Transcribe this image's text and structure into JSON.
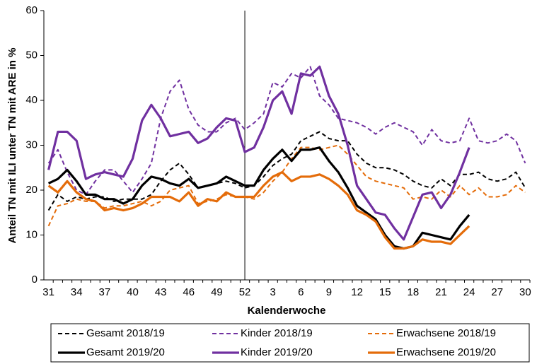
{
  "chart_data": {
    "type": "line",
    "x_label": "Kalenderwoche",
    "y_label": "Anteil TN mit ILI unter TN mit ARE in %",
    "categories": [
      "31",
      null,
      null,
      "34",
      null,
      null,
      "37",
      null,
      null,
      "40",
      null,
      null,
      "43",
      null,
      null,
      "46",
      null,
      null,
      "49",
      null,
      null,
      "52",
      null,
      null,
      "3",
      null,
      null,
      "6",
      null,
      null,
      "9",
      null,
      null,
      "12",
      null,
      null,
      "15",
      null,
      null,
      "18",
      null,
      null,
      "21",
      null,
      null,
      "24",
      null,
      null,
      "27",
      null,
      null,
      "30"
    ],
    "ylim": [
      0,
      60
    ],
    "yticks": [
      0,
      10,
      20,
      30,
      40,
      50,
      60
    ],
    "vertical_line": true,
    "series": [
      {
        "name": "Gesamt 2018/19",
        "color": "#000000",
        "line_style": "dashed",
        "values": [
          15.5,
          19,
          17.5,
          18.5,
          18,
          18.5,
          18.5,
          17.5,
          18,
          18,
          18,
          19,
          22,
          24.5,
          26,
          23.5,
          20.5,
          21,
          21.5,
          22,
          21.5,
          20.5,
          21,
          23,
          25.5,
          27,
          28,
          31,
          32,
          33,
          31.5,
          31,
          31,
          28,
          26,
          25,
          25,
          24.5,
          23.5,
          22,
          21,
          20.5,
          22.5,
          21,
          23.5,
          23.5,
          24,
          22.5,
          22,
          22.5,
          24,
          20.5
        ]
      },
      {
        "name": "Kinder 2018/19",
        "color": "#7030a0",
        "line_style": "dashed",
        "values": [
          26,
          29,
          24,
          20,
          19,
          22,
          24.5,
          24.5,
          22,
          19.5,
          22.5,
          26,
          36,
          42,
          44.5,
          38,
          34.5,
          33,
          33,
          35,
          36,
          33.5,
          35,
          37,
          44,
          43,
          46,
          45,
          47.5,
          41,
          39,
          36,
          35.5,
          35,
          34,
          32.5,
          34,
          35,
          34,
          33,
          30,
          33.5,
          31,
          30.5,
          31,
          36,
          31,
          30.5,
          31,
          32.5,
          31,
          26
        ]
      },
      {
        "name": "Erwachsene 2018/19",
        "color": "#e46c0a",
        "line_style": "dashed",
        "values": [
          12,
          16.5,
          17,
          18,
          17.5,
          17.5,
          16,
          16.5,
          16.5,
          17,
          17.5,
          16.5,
          17.5,
          20,
          20.5,
          21,
          17,
          17.5,
          18,
          19,
          18.5,
          18.5,
          18,
          19.5,
          22,
          24,
          27,
          29.5,
          29.5,
          29,
          29.5,
          30,
          28,
          25.5,
          23,
          22,
          21.5,
          21,
          20.5,
          18,
          18.5,
          18,
          20,
          18.5,
          21,
          19,
          20.5,
          18.5,
          18.5,
          19,
          21,
          19.5
        ]
      },
      {
        "name": "Gesamt 2019/20",
        "color": "#000000",
        "line_style": "solid",
        "values": [
          21.5,
          22.5,
          24.5,
          22,
          19,
          19,
          18,
          18,
          17,
          18,
          21,
          23,
          22.5,
          21.5,
          21,
          22.5,
          20.5,
          21,
          21.5,
          23,
          22,
          21,
          21,
          24.5,
          27,
          29,
          26.5,
          29,
          29,
          29.5,
          26.5,
          24,
          20.5,
          16.5,
          15,
          13.5,
          10,
          7.5,
          7,
          7.5,
          10.5,
          10,
          9.5,
          9,
          12,
          14.5,
          null,
          null,
          null,
          null,
          null,
          null
        ]
      },
      {
        "name": "Kinder 2019/20",
        "color": "#7030a0",
        "line_style": "solid",
        "values": [
          24.5,
          33,
          33,
          31,
          22.5,
          23.5,
          24,
          23.5,
          23,
          27,
          35.5,
          39,
          36,
          32,
          32.5,
          33,
          30.5,
          31.5,
          34,
          36,
          35.5,
          28.5,
          29.5,
          34,
          40,
          42,
          37,
          46,
          45.5,
          47.5,
          41,
          37,
          30,
          21,
          18,
          15,
          14.5,
          11.5,
          9,
          14,
          19,
          19.5,
          16,
          19,
          24,
          29.5,
          null,
          null,
          null,
          null,
          null,
          null
        ]
      },
      {
        "name": "Erwachsene 2019/20",
        "color": "#e46c0a",
        "line_style": "solid",
        "values": [
          21,
          19.5,
          22,
          19.5,
          18,
          17.5,
          15.5,
          16,
          15.5,
          16,
          17,
          18.5,
          18.5,
          18.5,
          17.5,
          19.5,
          16.5,
          18,
          17.5,
          19.5,
          18.5,
          18.5,
          18.5,
          21,
          23,
          24,
          22,
          23,
          23,
          23.5,
          22.5,
          21,
          19,
          15.5,
          14.5,
          13,
          9.5,
          7,
          7,
          7.5,
          9,
          8.5,
          8.5,
          8,
          10,
          12,
          null,
          null,
          null,
          null,
          null,
          null
        ]
      }
    ]
  }
}
